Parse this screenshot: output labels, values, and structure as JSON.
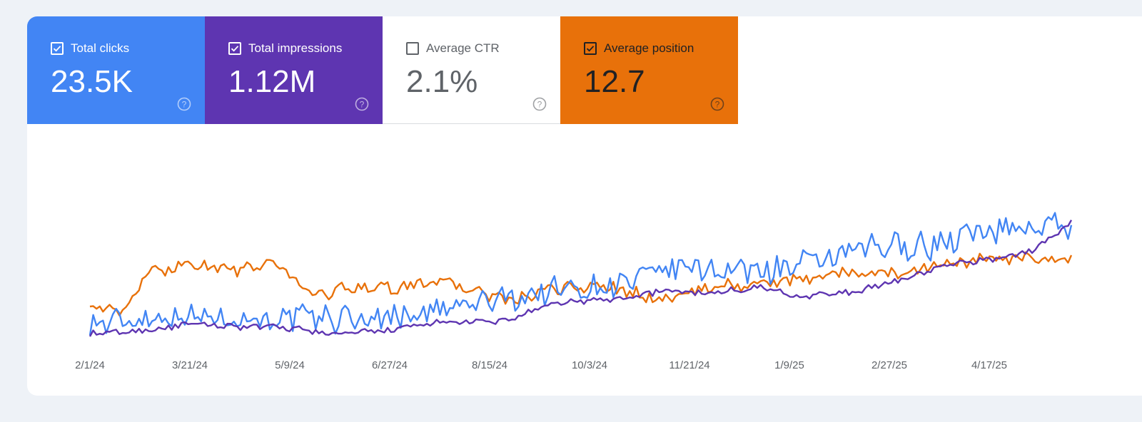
{
  "metrics": [
    {
      "label": "Total clicks",
      "value": "23.5K",
      "checked": true,
      "bg": "#4285f4",
      "fg": "#ffffff"
    },
    {
      "label": "Total impressions",
      "value": "1.12M",
      "checked": true,
      "bg": "#5e35b1",
      "fg": "#ffffff"
    },
    {
      "label": "Average CTR",
      "value": "2.1%",
      "checked": false,
      "bg": "#ffffff",
      "fg": "#5f6368"
    },
    {
      "label": "Average position",
      "value": "12.7",
      "checked": true,
      "bg": "#e8710a",
      "fg": "#202124"
    }
  ],
  "chart_data": {
    "type": "line",
    "x_tick_labels": [
      "2/1/24",
      "3/21/24",
      "5/9/24",
      "6/27/24",
      "8/15/24",
      "10/3/24",
      "11/21/24",
      "1/9/25",
      "2/27/25",
      "4/17/25"
    ],
    "x_range": [
      "2/1/24",
      "5/28/25"
    ],
    "grid": false,
    "series": [
      {
        "name": "Total clicks",
        "color": "#4285f4",
        "trend": [
          [
            0,
            0.06
          ],
          [
            0.08,
            0.12
          ],
          [
            0.18,
            0.1
          ],
          [
            0.28,
            0.1
          ],
          [
            0.35,
            0.14
          ],
          [
            0.42,
            0.22
          ],
          [
            0.48,
            0.28
          ],
          [
            0.55,
            0.32
          ],
          [
            0.6,
            0.42
          ],
          [
            0.66,
            0.4
          ],
          [
            0.72,
            0.42
          ],
          [
            0.8,
            0.54
          ],
          [
            0.86,
            0.56
          ],
          [
            0.92,
            0.66
          ],
          [
            1.0,
            0.68
          ]
        ],
        "noise": 0.11
      },
      {
        "name": "Total impressions",
        "color": "#5e35b1",
        "trend": [
          [
            0,
            0.0
          ],
          [
            0.05,
            0.02
          ],
          [
            0.1,
            0.06
          ],
          [
            0.2,
            0.04
          ],
          [
            0.25,
            0.0
          ],
          [
            0.3,
            0.02
          ],
          [
            0.35,
            0.07
          ],
          [
            0.42,
            0.08
          ],
          [
            0.48,
            0.2
          ],
          [
            0.54,
            0.22
          ],
          [
            0.58,
            0.27
          ],
          [
            0.64,
            0.26
          ],
          [
            0.68,
            0.3
          ],
          [
            0.72,
            0.24
          ],
          [
            0.78,
            0.26
          ],
          [
            0.83,
            0.35
          ],
          [
            0.88,
            0.44
          ],
          [
            0.92,
            0.47
          ],
          [
            0.96,
            0.52
          ],
          [
            1.0,
            0.7
          ]
        ],
        "noise": 0.025
      },
      {
        "name": "Average position",
        "color": "#e8710a",
        "trend": [
          [
            0,
            0.2
          ],
          [
            0.03,
            0.12
          ],
          [
            0.06,
            0.38
          ],
          [
            0.1,
            0.44
          ],
          [
            0.15,
            0.4
          ],
          [
            0.19,
            0.44
          ],
          [
            0.23,
            0.24
          ],
          [
            0.27,
            0.3
          ],
          [
            0.31,
            0.28
          ],
          [
            0.35,
            0.34
          ],
          [
            0.4,
            0.26
          ],
          [
            0.43,
            0.2
          ],
          [
            0.47,
            0.28
          ],
          [
            0.52,
            0.3
          ],
          [
            0.58,
            0.22
          ],
          [
            0.64,
            0.3
          ],
          [
            0.7,
            0.32
          ],
          [
            0.76,
            0.38
          ],
          [
            0.82,
            0.38
          ],
          [
            0.88,
            0.45
          ],
          [
            0.94,
            0.47
          ],
          [
            1.0,
            0.45
          ]
        ],
        "noise": 0.05
      }
    ]
  }
}
